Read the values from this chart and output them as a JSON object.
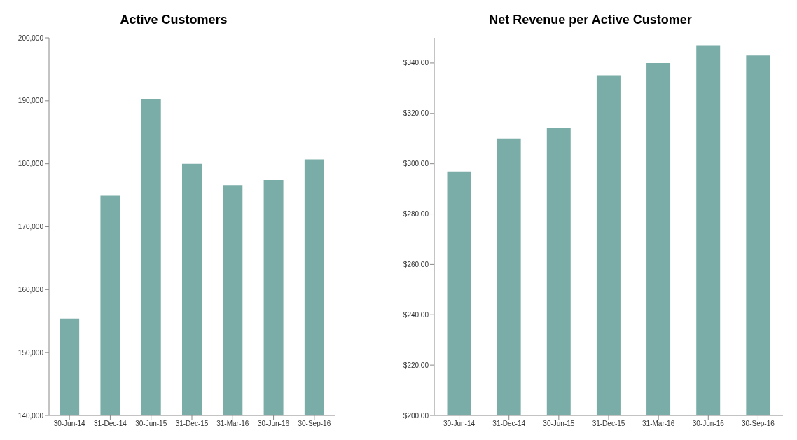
{
  "chart_data": [
    {
      "type": "bar",
      "title": "Active Customers",
      "categories": [
        "30-Jun-14",
        "31-Dec-14",
        "30-Jun-15",
        "31-Dec-15",
        "31-Mar-16",
        "30-Jun-16",
        "30-Sep-16"
      ],
      "values": [
        155400,
        174900,
        190200,
        180000,
        176600,
        177400,
        180700
      ],
      "color": "#7aada8",
      "ylim": [
        140000,
        200000
      ],
      "yticks": [
        {
          "value": 140000,
          "label": "140,000"
        },
        {
          "value": 150000,
          "label": "150,000"
        },
        {
          "value": 160000,
          "label": "160,000"
        },
        {
          "value": 170000,
          "label": "170,000"
        },
        {
          "value": 180000,
          "label": "180,000"
        },
        {
          "value": 190000,
          "label": "190,000"
        },
        {
          "value": 200000,
          "label": "200,000"
        }
      ],
      "grid": false
    },
    {
      "type": "bar",
      "title": "Net Revenue per Active Customer",
      "categories": [
        "30-Jun-14",
        "31-Dec-14",
        "30-Jun-15",
        "31-Dec-15",
        "31-Mar-16",
        "30-Jun-16",
        "30-Sep-16"
      ],
      "values": [
        296.9,
        310.0,
        314.3,
        335.1,
        340.0,
        347.1,
        343.0
      ],
      "color": "#7aada8",
      "ylim": [
        200,
        350
      ],
      "yticks": [
        {
          "value": 200,
          "label": "$200.00"
        },
        {
          "value": 220,
          "label": "$220.00"
        },
        {
          "value": 240,
          "label": "$240.00"
        },
        {
          "value": 260,
          "label": "$260.00"
        },
        {
          "value": 280,
          "label": "$280.00"
        },
        {
          "value": 300,
          "label": "$300.00"
        },
        {
          "value": 320,
          "label": "$320.00"
        },
        {
          "value": 340,
          "label": "$340.00"
        }
      ],
      "grid": false
    }
  ]
}
